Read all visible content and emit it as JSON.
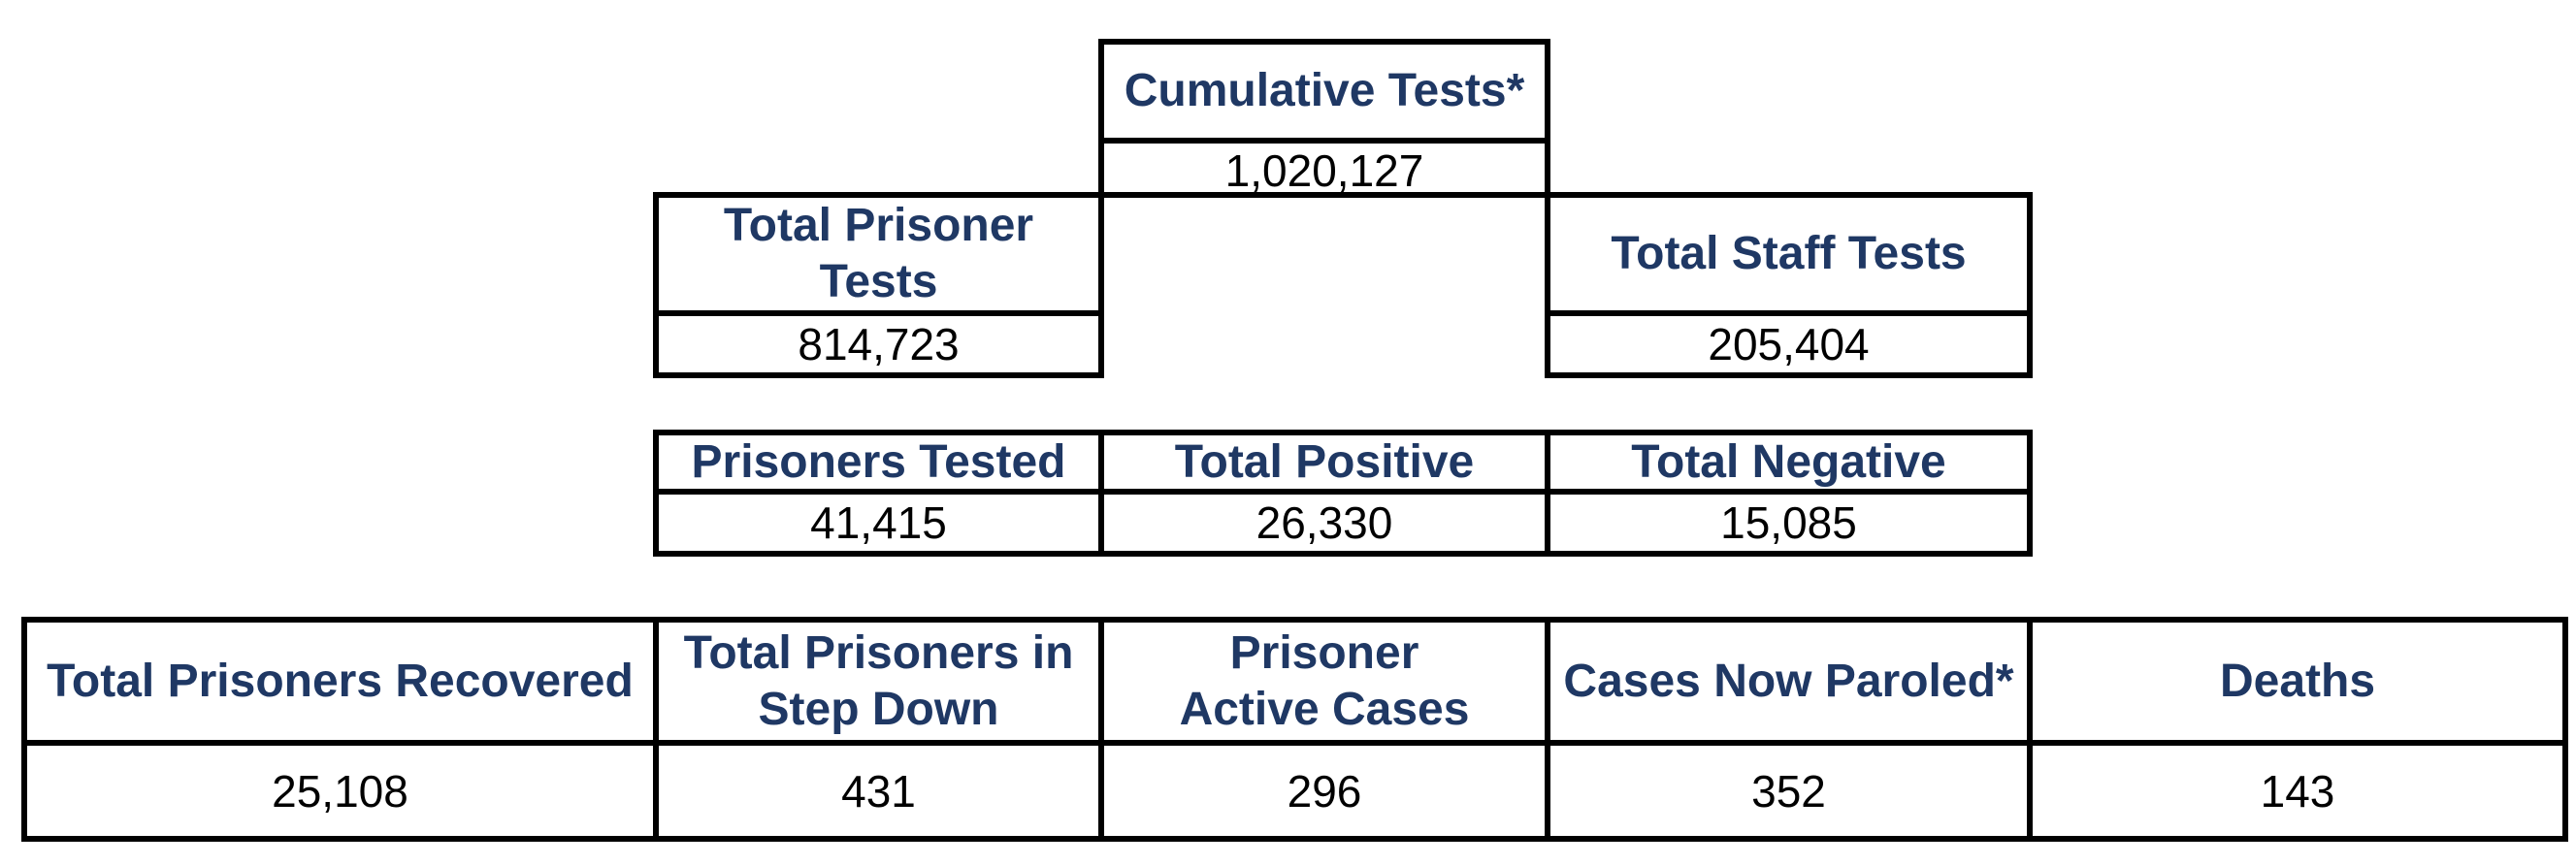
{
  "cumulative": {
    "label": "Cumulative Tests*",
    "value": "1,020,127"
  },
  "prisoner_tests": {
    "label": "Total Prisoner Tests",
    "value": "814,723"
  },
  "staff_tests": {
    "label": "Total Staff Tests",
    "value": "205,404"
  },
  "tested_row": [
    {
      "label": "Prisoners Tested",
      "value": "41,415"
    },
    {
      "label": "Total Positive",
      "value": "26,330"
    },
    {
      "label": "Total Negative",
      "value": "15,085"
    }
  ],
  "status_row": [
    {
      "label": "Total Prisoners Recovered",
      "value": "25,108"
    },
    {
      "label": "Total Prisoners in Step Down",
      "value": "431"
    },
    {
      "label": "Prisoner Active Cases",
      "value": "296"
    },
    {
      "label": "Cases Now Paroled*",
      "value": "352"
    },
    {
      "label": "Deaths",
      "value": "143"
    }
  ],
  "colors": {
    "header_text": "#1f3864",
    "value_text": "#000000",
    "border": "#000000"
  }
}
